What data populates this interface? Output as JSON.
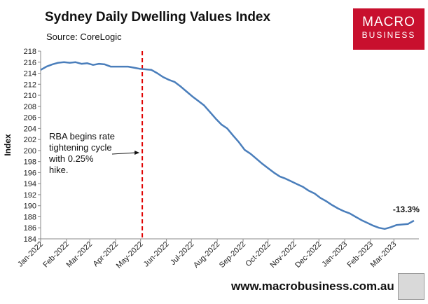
{
  "header": {
    "title": "Sydney Daily Dwelling Values Index",
    "subtitle": "Source: CoreLogic"
  },
  "logo": {
    "line1": "MACRO",
    "line2": "BUSINESS"
  },
  "footer": {
    "website": "www.macrobusiness.com.au"
  },
  "colors": {
    "series": "#4a7ebb",
    "marker": "#e00000",
    "logo_bg": "#c8102e"
  },
  "chart_data": {
    "type": "line",
    "title": "Sydney Daily Dwelling Values Index",
    "subtitle": "Source: CoreLogic",
    "ylabel": "Index",
    "xlabel": "",
    "ylim": [
      184,
      218
    ],
    "yticks": [
      184,
      186,
      188,
      190,
      192,
      194,
      196,
      198,
      200,
      202,
      204,
      206,
      208,
      210,
      212,
      214,
      216,
      218
    ],
    "xlim": [
      "2022-01-01",
      "2023-03-31"
    ],
    "xticks": [
      {
        "date": "2022-01-01",
        "label": "Jan-2022"
      },
      {
        "date": "2022-02-01",
        "label": "Feb-2022"
      },
      {
        "date": "2022-03-01",
        "label": "Mar-2022"
      },
      {
        "date": "2022-04-01",
        "label": "Apr-2022"
      },
      {
        "date": "2022-05-01",
        "label": "May-2022"
      },
      {
        "date": "2022-06-01",
        "label": "Jun-2022"
      },
      {
        "date": "2022-07-01",
        "label": "Jul-2022"
      },
      {
        "date": "2022-08-01",
        "label": "Aug-2022"
      },
      {
        "date": "2022-09-01",
        "label": "Sep-2022"
      },
      {
        "date": "2022-10-01",
        "label": "Oct-2022"
      },
      {
        "date": "2022-11-01",
        "label": "Nov-2022"
      },
      {
        "date": "2022-12-01",
        "label": "Dec-2022"
      },
      {
        "date": "2023-01-01",
        "label": "Jan-2023"
      },
      {
        "date": "2023-02-01",
        "label": "Feb-2023"
      },
      {
        "date": "2023-03-01",
        "label": "Mar-2023"
      }
    ],
    "grid": false,
    "series": [
      {
        "color": "#4a7ebb",
        "points": [
          [
            "2022-01-01",
            214.6
          ],
          [
            "2022-01-08",
            215.2
          ],
          [
            "2022-01-15",
            215.6
          ],
          [
            "2022-01-22",
            215.9
          ],
          [
            "2022-01-29",
            216.0
          ],
          [
            "2022-02-05",
            215.9
          ],
          [
            "2022-02-12",
            216.0
          ],
          [
            "2022-02-19",
            215.7
          ],
          [
            "2022-02-26",
            215.8
          ],
          [
            "2022-03-05",
            215.5
          ],
          [
            "2022-03-12",
            215.7
          ],
          [
            "2022-03-19",
            215.6
          ],
          [
            "2022-03-26",
            215.2
          ],
          [
            "2022-04-02",
            215.2
          ],
          [
            "2022-04-09",
            215.2
          ],
          [
            "2022-04-16",
            215.2
          ],
          [
            "2022-04-23",
            215.0
          ],
          [
            "2022-04-30",
            214.8
          ],
          [
            "2022-05-07",
            214.7
          ],
          [
            "2022-05-14",
            214.6
          ],
          [
            "2022-05-21",
            214.0
          ],
          [
            "2022-05-28",
            213.3
          ],
          [
            "2022-06-04",
            212.8
          ],
          [
            "2022-06-11",
            212.4
          ],
          [
            "2022-06-18",
            211.6
          ],
          [
            "2022-06-25",
            210.7
          ],
          [
            "2022-07-02",
            209.8
          ],
          [
            "2022-07-09",
            209.0
          ],
          [
            "2022-07-16",
            208.2
          ],
          [
            "2022-07-23",
            207.0
          ],
          [
            "2022-07-30",
            205.8
          ],
          [
            "2022-08-06",
            204.7
          ],
          [
            "2022-08-13",
            204.0
          ],
          [
            "2022-08-20",
            202.7
          ],
          [
            "2022-08-27",
            201.5
          ],
          [
            "2022-09-03",
            200.1
          ],
          [
            "2022-09-10",
            199.4
          ],
          [
            "2022-09-17",
            198.5
          ],
          [
            "2022-09-24",
            197.6
          ],
          [
            "2022-10-01",
            196.8
          ],
          [
            "2022-10-08",
            196.0
          ],
          [
            "2022-10-15",
            195.3
          ],
          [
            "2022-10-22",
            194.9
          ],
          [
            "2022-10-29",
            194.4
          ],
          [
            "2022-11-05",
            193.9
          ],
          [
            "2022-11-12",
            193.4
          ],
          [
            "2022-11-19",
            192.7
          ],
          [
            "2022-11-26",
            192.2
          ],
          [
            "2022-12-03",
            191.4
          ],
          [
            "2022-12-10",
            190.8
          ],
          [
            "2022-12-17",
            190.1
          ],
          [
            "2022-12-24",
            189.5
          ],
          [
            "2022-12-31",
            189.0
          ],
          [
            "2023-01-07",
            188.6
          ],
          [
            "2023-01-14",
            188.0
          ],
          [
            "2023-01-21",
            187.4
          ],
          [
            "2023-01-28",
            186.9
          ],
          [
            "2023-02-04",
            186.4
          ],
          [
            "2023-02-11",
            186.0
          ],
          [
            "2023-02-18",
            185.8
          ],
          [
            "2023-02-25",
            186.1
          ],
          [
            "2023-03-04",
            186.5
          ],
          [
            "2023-03-11",
            186.6
          ],
          [
            "2023-03-18",
            186.7
          ],
          [
            "2023-03-25",
            187.3
          ]
        ]
      }
    ],
    "vline": {
      "date": "2022-05-03",
      "color": "#e00000",
      "style": "dashed"
    },
    "annotations": [
      {
        "lines": [
          "RBA begins rate",
          "tightening cycle",
          "with 0.25%",
          "hike."
        ],
        "arrow_to": {
          "date": "2022-05-03",
          "y": 199.6
        }
      },
      {
        "text": "-13.3%",
        "at": {
          "date": "2023-03-25",
          "y": 187.3
        }
      }
    ]
  }
}
